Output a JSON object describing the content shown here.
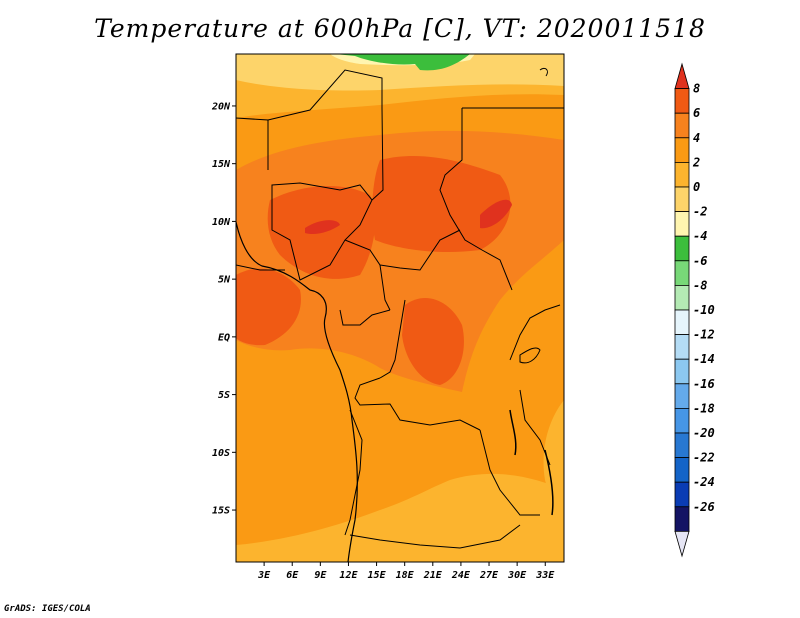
{
  "title": "Temperature at 600hPa [C], VT: 2020011518",
  "credit": "GrADS: IGES/COLA",
  "map": {
    "lat_ticks": [
      "20N",
      "15N",
      "10N",
      "5N",
      "EQ",
      "5S",
      "10S",
      "15S"
    ],
    "lat_values": [
      20,
      15,
      10,
      5,
      0,
      -5,
      -10,
      -15
    ],
    "lon_ticks": [
      "3E",
      "6E",
      "9E",
      "12E",
      "15E",
      "18E",
      "21E",
      "24E",
      "27E",
      "30E",
      "33E"
    ],
    "lon_values": [
      3,
      6,
      9,
      12,
      15,
      18,
      21,
      24,
      27,
      30,
      33
    ],
    "lat_range": [
      -19.5,
      24.5
    ],
    "lon_range": [
      0,
      35
    ]
  },
  "colorbar": {
    "labels": [
      "8",
      "6",
      "4",
      "2",
      "0",
      "-2",
      "-4",
      "-6",
      "-8",
      "-10",
      "-12",
      "-14",
      "-16",
      "-18",
      "-20",
      "-22",
      "-24",
      "-26"
    ],
    "colors": [
      "#e0321e",
      "#f05a14",
      "#f7821e",
      "#fa9a14",
      "#fcb42e",
      "#fdd46a",
      "#fff5b0",
      "#3cbe3c",
      "#78d878",
      "#b4eab4",
      "#e6f5fc",
      "#b4dcf5",
      "#8cc8f0",
      "#64aaeb",
      "#4696e6",
      "#2878d2",
      "#1464c8",
      "#0a3cb4",
      "#141464",
      "#e6e6f5"
    ]
  }
}
